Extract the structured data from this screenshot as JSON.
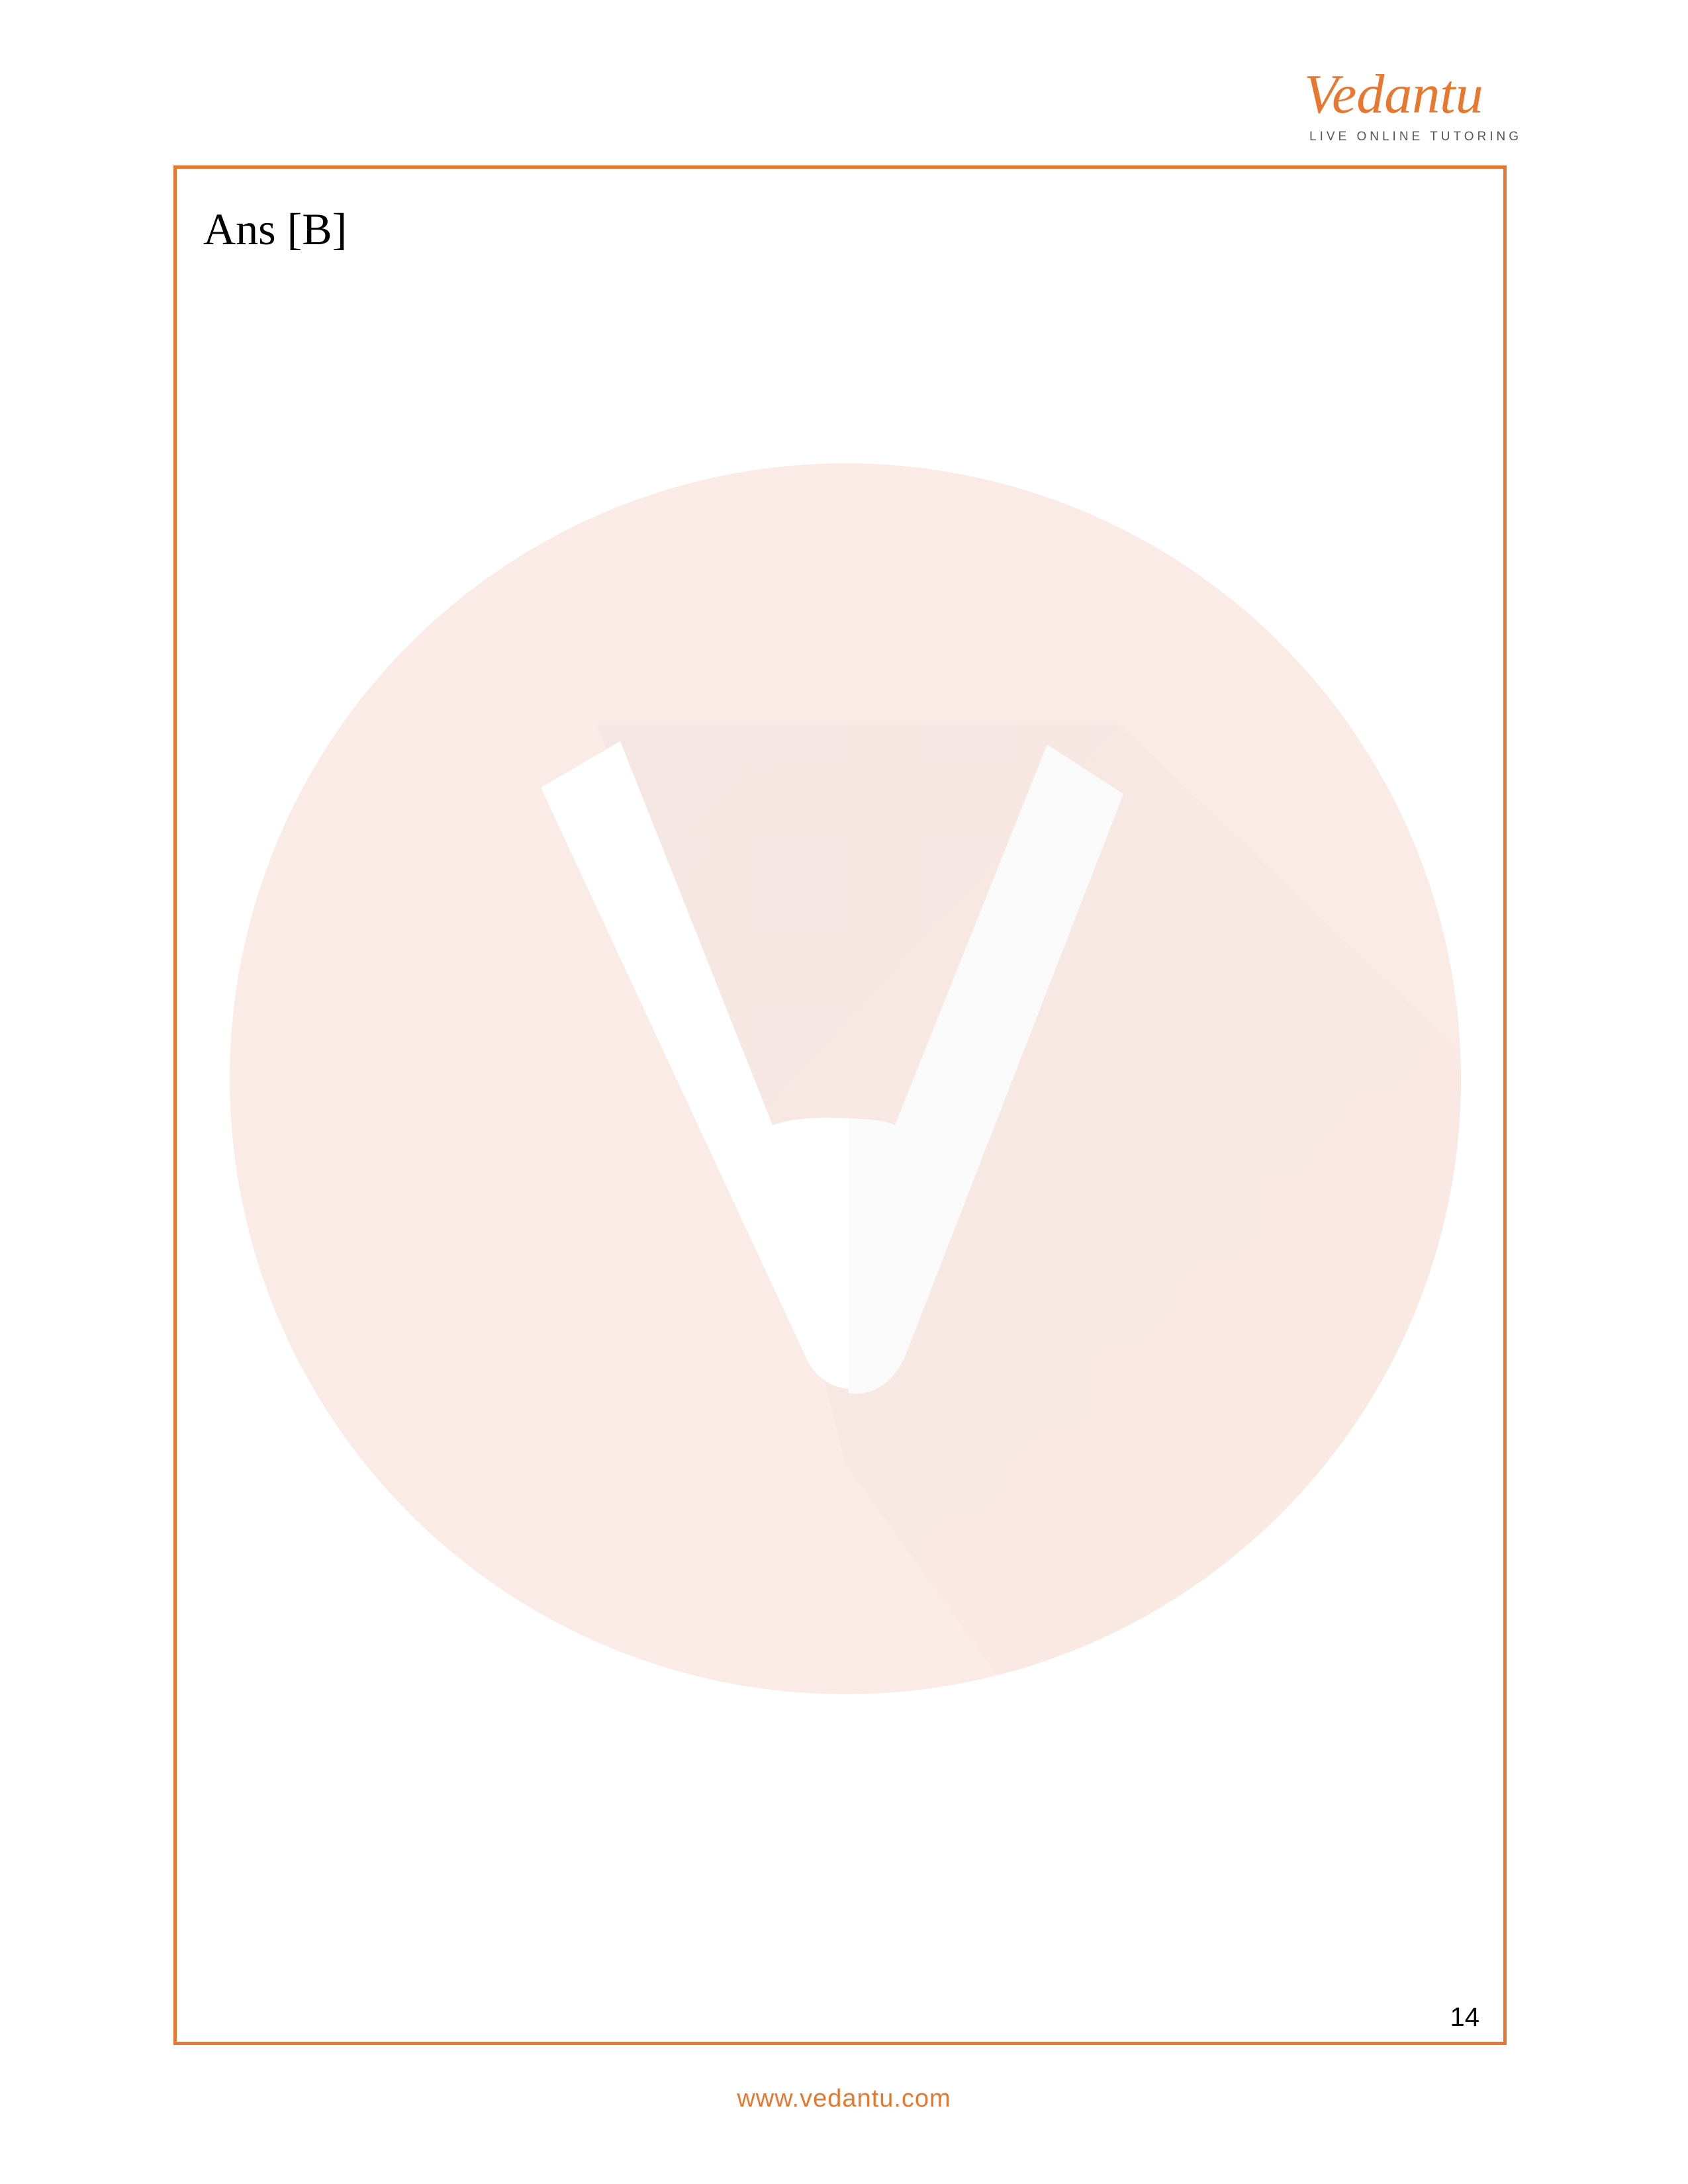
{
  "header": {
    "logo_text": "Vedantu",
    "logo_tagline": "LIVE ONLINE TUTORING"
  },
  "content": {
    "answer": "Ans [B]"
  },
  "page_number": "14",
  "footer": {
    "url": "www.vedantu.com"
  },
  "colors": {
    "accent": "#e8782f",
    "watermark": "#fbe9e3"
  },
  "icons": {
    "watermark": "vedantu-v-logo-watermark"
  }
}
